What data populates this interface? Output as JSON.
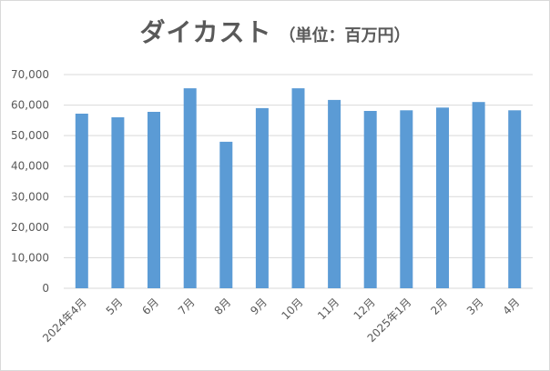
{
  "chart_data": {
    "type": "bar",
    "title": "ダイカスト",
    "subtitle": "（単位：百万円）",
    "categories": [
      "2024年4月",
      "5月",
      "6月",
      "7月",
      "8月",
      "9月",
      "10月",
      "11月",
      "12月",
      "2025年1月",
      "2月",
      "3月",
      "4月"
    ],
    "values": [
      57200,
      56000,
      57800,
      65500,
      48000,
      59000,
      65500,
      61700,
      58100,
      58300,
      59200,
      61000,
      58300
    ],
    "ylim": [
      0,
      70000
    ],
    "yticks": [
      0,
      10000,
      20000,
      30000,
      40000,
      50000,
      60000,
      70000
    ],
    "ytick_labels": [
      "0",
      "10,000",
      "20,000",
      "30,000",
      "40,000",
      "50,000",
      "60,000",
      "70,000"
    ],
    "xlabel": "",
    "ylabel": "",
    "grid": true,
    "legend": "none",
    "bar_color": "#5b9bd5",
    "grid_color": "#d9d9d9"
  }
}
